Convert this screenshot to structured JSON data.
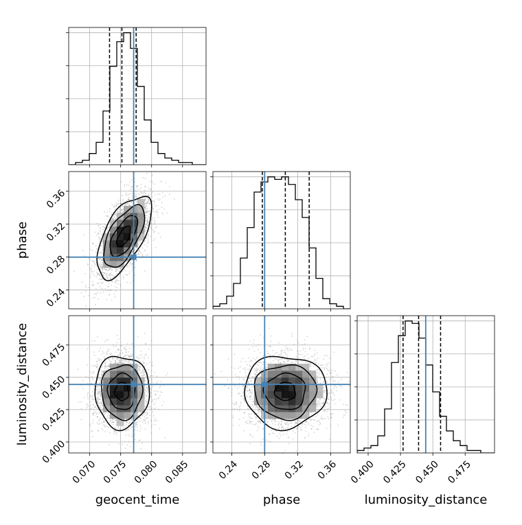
{
  "chart_data": {
    "type": "corner",
    "parameters": [
      "geocent_time",
      "phase",
      "luminosity_distance"
    ],
    "axis_labels": [
      "geocent_time",
      "phase",
      "luminosity_distance"
    ],
    "ranges": {
      "geocent_time": [
        0.0666,
        0.0888
      ],
      "phase": [
        0.2171,
        0.3839
      ],
      "luminosity_distance": [
        0.3915,
        0.4977
      ]
    },
    "ticks": {
      "geocent_time": [
        "0.070",
        "0.075",
        "0.080",
        "0.085"
      ],
      "phase": [
        "0.24",
        "0.28",
        "0.32",
        "0.36"
      ],
      "luminosity_distance": [
        "0.400",
        "0.425",
        "0.450",
        "0.475"
      ]
    },
    "truths": {
      "geocent_time": 0.0771,
      "phase": 0.2799,
      "luminosity_distance": 0.4445
    },
    "quantiles": {
      "geocent_time": [
        0.0732,
        0.0752,
        0.0775
      ],
      "phase": [
        0.2771,
        0.305,
        0.334
      ],
      "luminosity_distance": [
        0.427,
        0.439,
        0.456
      ]
    },
    "histograms": {
      "geocent_time": {
        "edges_start": 0.0666,
        "edges_end": 0.0888,
        "counts": [
          0,
          1,
          2,
          5,
          10,
          24,
          44,
          55,
          59,
          52,
          35,
          20,
          10,
          5,
          3,
          2,
          1,
          1,
          0,
          0
        ]
      },
      "phase": {
        "edges_start": 0.2171,
        "edges_end": 0.3839,
        "counts": [
          1,
          2,
          5,
          10,
          20,
          32,
          46,
          50,
          52,
          51,
          52,
          49,
          43,
          36,
          24,
          12,
          4,
          2,
          1,
          0
        ]
      },
      "luminosity_distance": {
        "edges_start": 0.3915,
        "edges_end": 0.4977,
        "counts": [
          1,
          2,
          3,
          7,
          18,
          37,
          48,
          54,
          53,
          47,
          36,
          25,
          15,
          9,
          5,
          3,
          1,
          1,
          0,
          0
        ]
      }
    },
    "pair_distributions": [
      {
        "x": "geocent_time",
        "y": "phase",
        "mean": [
          0.0755,
          0.305
        ],
        "sd": [
          0.0022,
          0.025
        ],
        "correlation": 0.62
      },
      {
        "x": "geocent_time",
        "y": "luminosity_distance",
        "mean": [
          0.0752,
          0.439
        ],
        "sd": [
          0.0022,
          0.014
        ],
        "correlation": 0.0
      },
      {
        "x": "phase",
        "y": "luminosity_distance",
        "mean": [
          0.305,
          0.439
        ],
        "sd": [
          0.025,
          0.014
        ],
        "correlation": 0.0
      }
    ],
    "colors": {
      "truth": "#4682b4",
      "histogram": "#000000",
      "scatter": "#888888"
    }
  }
}
